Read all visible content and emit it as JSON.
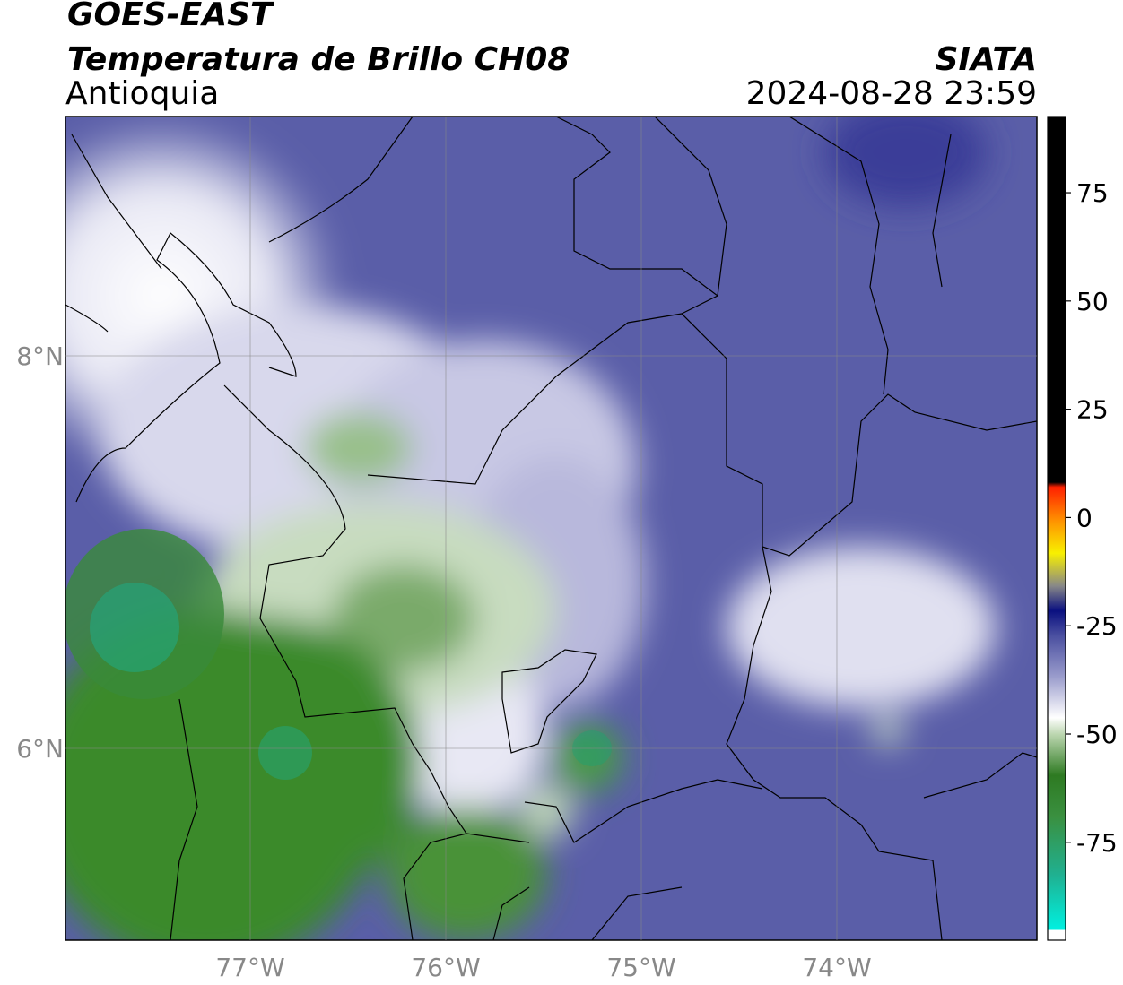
{
  "header": {
    "source": "GOES-EAST",
    "title": "Temperatura de Brillo CH08",
    "region": "Antioquia",
    "agency": "SIATA",
    "datetime": "2024-08-28 23:59"
  },
  "map": {
    "lon_lim": [
      -77.945,
      -72.977
    ],
    "lat_lim": [
      5.023,
      9.219
    ],
    "lon_ticks": [
      {
        "value": -77,
        "label": "77°W"
      },
      {
        "value": -76,
        "label": "76°W"
      },
      {
        "value": -75,
        "label": "75°W"
      },
      {
        "value": -74,
        "label": "74°W"
      }
    ],
    "lat_ticks": [
      {
        "value": 8,
        "label": "8°N"
      },
      {
        "value": 6,
        "label": "6°N"
      }
    ]
  },
  "colorbar": {
    "lim": [
      -97.6,
      92.6
    ],
    "ticks": [
      75,
      50,
      25,
      0,
      -25,
      -50,
      -75
    ]
  }
}
